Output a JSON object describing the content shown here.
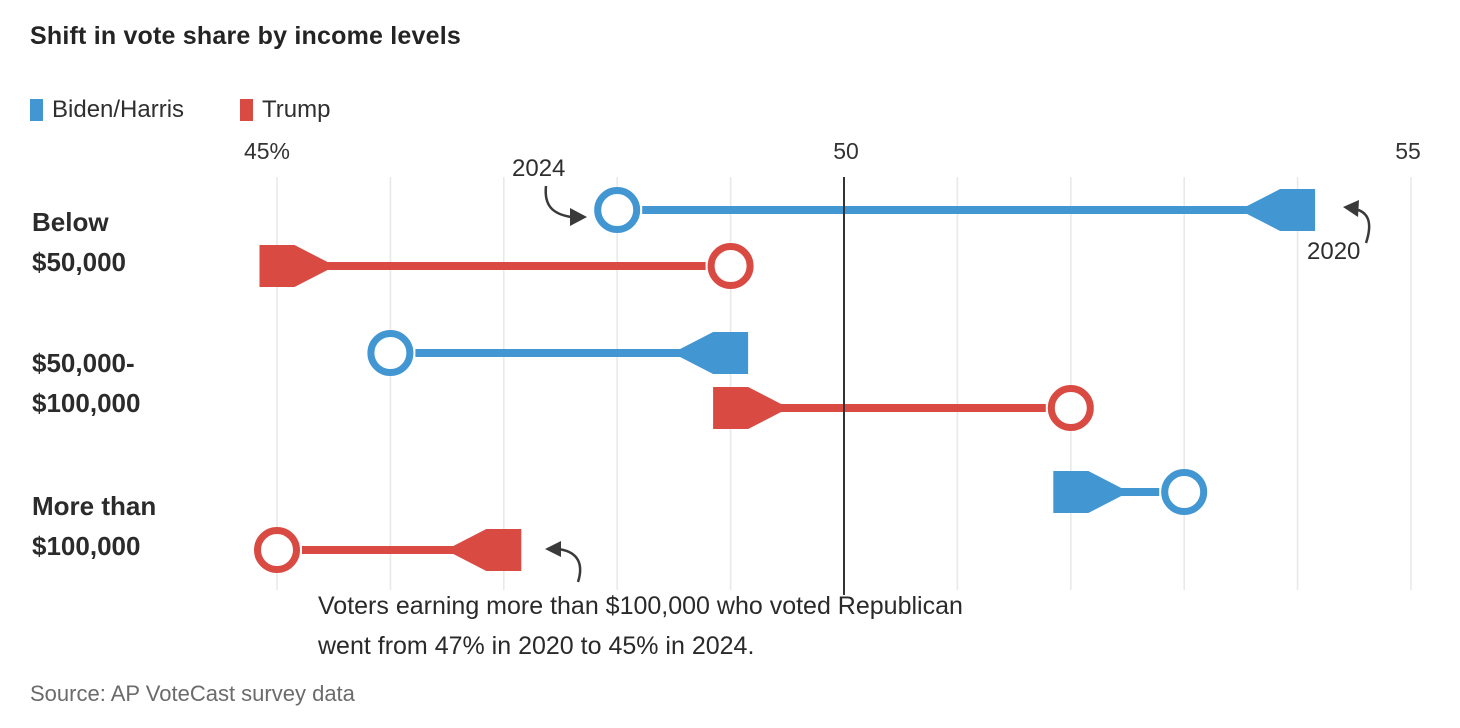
{
  "title": "Shift in vote share by income levels",
  "callouts": {
    "label_2024": "2024",
    "label_2020": "2020"
  },
  "category_labels": [
    {
      "line1": "Below",
      "line2": "$50,000"
    },
    {
      "line1": "$50,000-",
      "line2": "$100,000"
    },
    {
      "line1": "More than",
      "line2": "$100,000"
    }
  ],
  "annotation": {
    "line1": "Voters earning more than $100,000 who voted Republican",
    "line2": "went from 47% in 2020 to 45% in 2024."
  },
  "source": "Source: AP VoteCast survey data",
  "chart_data": {
    "type": "arrow-dumbbell",
    "title": "Shift in vote share by income levels",
    "categories": [
      "Below $50,000",
      "$50,000-$100,000",
      "More than $100,000"
    ],
    "series": [
      {
        "name": "Biden/Harris",
        "color": "#4296d2",
        "values_2020": [
          54,
          49,
          52
        ],
        "values_2024": [
          48,
          46,
          53
        ]
      },
      {
        "name": "Trump",
        "color": "#d94a43",
        "values_2020": [
          45,
          49,
          47
        ],
        "values_2024": [
          49,
          52,
          45
        ]
      }
    ],
    "xlim": [
      45,
      55
    ],
    "ticks": [
      {
        "value": 45,
        "label": "45%"
      },
      {
        "value": 50,
        "label": "50"
      },
      {
        "value": 55,
        "label": "55"
      }
    ],
    "gridline_step": 1,
    "marker_2020": "flag-tail",
    "marker_2024": "open-circle",
    "gridline_color": "#e9e9e9",
    "axis_line_color": "#333333",
    "legend_position": "top-left"
  }
}
